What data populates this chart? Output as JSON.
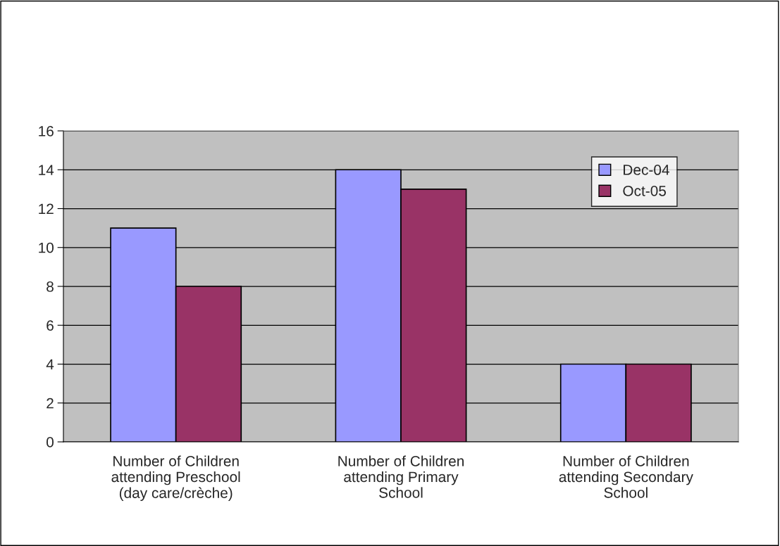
{
  "chart_data": {
    "type": "bar",
    "categories": [
      "Number of Children\nattending Preschool\n(day care/crèche)",
      "Number of Children\nattending Primary\nSchool",
      "Number of Children\nattending Secondary\nSchool"
    ],
    "series": [
      {
        "name": "Dec-04",
        "color": "#9999ff",
        "values": [
          11,
          14,
          4
        ]
      },
      {
        "name": "Oct-05",
        "color": "#993366",
        "values": [
          8,
          13,
          4
        ]
      }
    ],
    "ylim": [
      0,
      16
    ],
    "yticks": [
      0,
      2,
      4,
      6,
      8,
      10,
      12,
      14,
      16
    ],
    "grid": "y",
    "legend": "top right"
  }
}
